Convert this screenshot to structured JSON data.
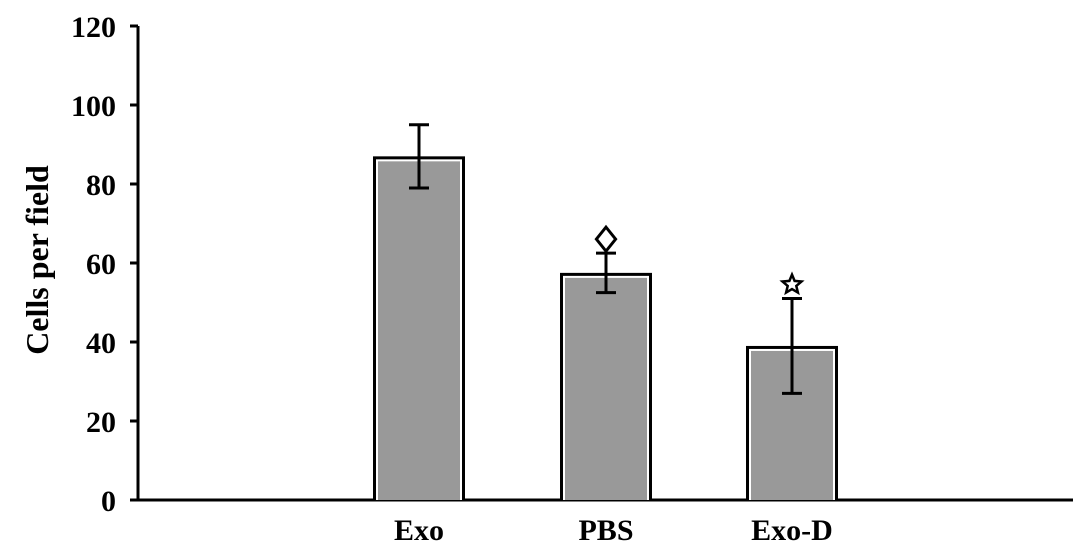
{
  "chart_data": {
    "type": "bar",
    "title": "",
    "xlabel": "",
    "ylabel": "Cells per field",
    "ylim": [
      0,
      120
    ],
    "yticks": [
      0,
      20,
      40,
      60,
      80,
      100,
      120
    ],
    "grid": false,
    "categories": [
      "Exo",
      "PBS",
      "Exo-D"
    ],
    "values": [
      87,
      57.5,
      39
    ],
    "error": [
      8,
      5,
      12
    ],
    "markers": [
      "",
      "◆",
      "★"
    ],
    "colors": {
      "bar": "#999999",
      "bar_stroke": "#000000",
      "axis": "#000000"
    }
  }
}
